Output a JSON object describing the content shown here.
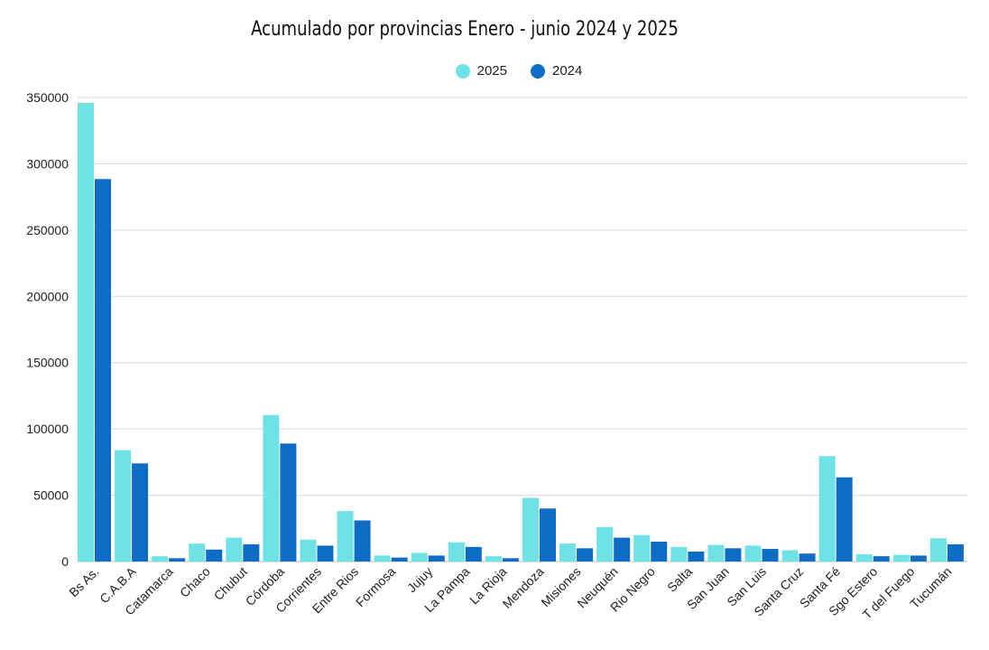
{
  "chart_data": {
    "type": "bar",
    "title": "Acumulado por provincias Enero  - junio 2024 y 2025",
    "xlabel": "",
    "ylabel": "",
    "ylim": [
      0,
      350000
    ],
    "yticks": [
      0,
      50000,
      100000,
      150000,
      200000,
      250000,
      300000,
      350000
    ],
    "yticks_labels": [
      "0",
      "50000",
      "100000",
      "150000",
      "200000",
      "250000",
      "300000",
      "350000"
    ],
    "grid": true,
    "legend_position": "top-center",
    "categories": [
      "Bs As.",
      "C.A.B.A",
      "Catamarca",
      "Chaco",
      "Chubut",
      "Córdoba",
      "Corrientes",
      "Entre Rios",
      "Formosa",
      "Jujuy",
      "La Pampa",
      "La Rioja",
      "Mendoza",
      "Misiones",
      "Neuquén",
      "Rio Negro",
      "Salta",
      "San Juan",
      "San Luis",
      "Santa Cruz",
      "Santa Fé",
      "Sgo Estero",
      "T del Fuego",
      "Tucumán"
    ],
    "series": [
      {
        "name": "2025",
        "color": "#6ee2e6",
        "values": [
          346000,
          84000,
          4000,
          13500,
          18000,
          110500,
          16500,
          38000,
          4500,
          6500,
          14500,
          4000,
          48000,
          13500,
          26000,
          20000,
          11000,
          12500,
          12000,
          8500,
          79500,
          5500,
          5000,
          17500
        ]
      },
      {
        "name": "2024",
        "color": "#0f6cc4",
        "values": [
          288500,
          74000,
          2500,
          9000,
          13000,
          89000,
          12000,
          31000,
          3000,
          4500,
          11000,
          2500,
          40000,
          10000,
          18000,
          15000,
          7500,
          10000,
          9500,
          6000,
          63500,
          4000,
          4500,
          13000
        ]
      }
    ]
  }
}
